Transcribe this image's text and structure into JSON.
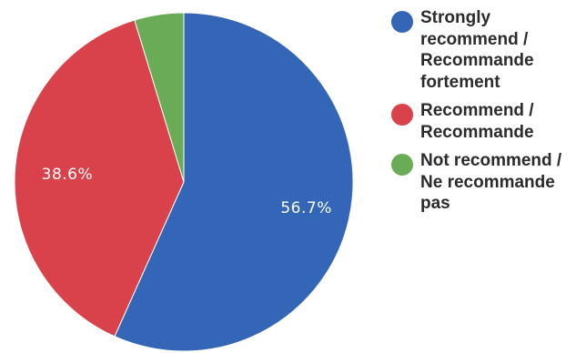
{
  "chart_data": {
    "type": "pie",
    "slices": [
      {
        "label": "Strongly\nrecommend /\nRecommande\nfortement",
        "value": 56.7,
        "value_label": "56.7%",
        "color": "#3466b8"
      },
      {
        "label": "Recommend /\nRecommande",
        "value": 38.6,
        "value_label": "38.6%",
        "color": "#d9424a"
      },
      {
        "label": "Not recommend /\nNe recommande\npas",
        "value": 4.7,
        "value_label": "",
        "color": "#6aac55"
      }
    ],
    "legend_position": "right",
    "start_angle": "12 o'clock",
    "direction": "clockwise"
  }
}
